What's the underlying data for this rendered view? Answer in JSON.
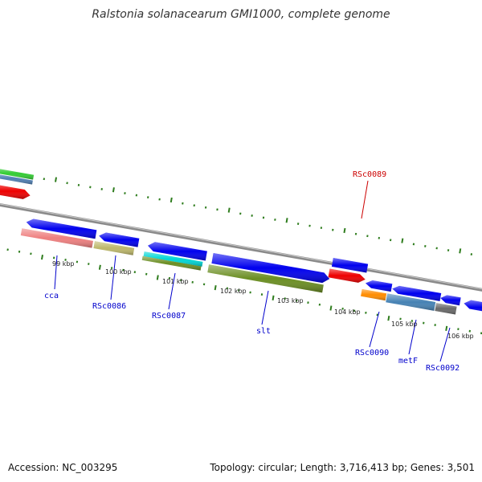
{
  "title": "Ralstonia solanacearum GMI1000, complete genome",
  "footer": {
    "accession": "Accession: NC_003295",
    "summary": "Topology: circular; Length: 3,716,413 bp; Genes: 3,501"
  },
  "colors": {
    "background": "#ffffff",
    "backbone": "#8a8a8a",
    "tick": "#2f7d1e",
    "label_default": "#0000cc",
    "label_highlight": "#cc0000"
  },
  "scale_labels": [
    "99 kbp",
    "100 kbp",
    "101 kbp",
    "102 kbp",
    "103 kbp",
    "104 kbp",
    "105 kbp",
    "106 kbp"
  ],
  "gene_labels": [
    {
      "text": "cca",
      "color": "#0000cc"
    },
    {
      "text": "RSc0086",
      "color": "#0000cc"
    },
    {
      "text": "RSc0087",
      "color": "#0000cc"
    },
    {
      "text": "slt",
      "color": "#0000cc"
    },
    {
      "text": "RSc0089",
      "color": "#cc0000"
    },
    {
      "text": "RSc0090",
      "color": "#0000cc"
    },
    {
      "text": "metF",
      "color": "#0000cc"
    },
    {
      "text": "RSc0092",
      "color": "#0000cc"
    }
  ],
  "features": [
    {
      "name": "green-bar",
      "strand": "+",
      "shape": "bar",
      "color": "#33cc33"
    },
    {
      "name": "steelblue-bar",
      "strand": "+",
      "shape": "bar",
      "color": "#4f7fb3"
    },
    {
      "name": "red-arrow-left",
      "strand": "+",
      "shape": "arrow-right",
      "color": "#ee0000"
    },
    {
      "name": "cca-arrow",
      "strand": "-",
      "shape": "arrow-left",
      "color": "#0000ee"
    },
    {
      "name": "cca-bar",
      "strand": "-",
      "shape": "bar",
      "color": "#ee7f7f"
    },
    {
      "name": "rsc0086-arrow",
      "strand": "-",
      "shape": "arrow-left",
      "color": "#0000ee"
    },
    {
      "name": "rsc0086-bar",
      "strand": "-",
      "shape": "bar",
      "color": "#bdb76b"
    },
    {
      "name": "rsc0087-arrow",
      "strand": "-",
      "shape": "arrow-left",
      "color": "#0000ee"
    },
    {
      "name": "rsc0087-cyan-bar",
      "strand": "-",
      "shape": "bar",
      "color": "#00d6d6"
    },
    {
      "name": "rsc0087-olive-bar",
      "strand": "-",
      "shape": "bar",
      "color": "#6b8e23"
    },
    {
      "name": "slt-arrow",
      "strand": "-",
      "shape": "arrow-right",
      "color": "#0000ee"
    },
    {
      "name": "slt-bar",
      "strand": "-",
      "shape": "bar",
      "color": "#6b8e23"
    },
    {
      "name": "rsc0089-arrow",
      "strand": "+",
      "shape": "bar",
      "color": "#0000ee"
    },
    {
      "name": "rsc0089-red-arrow",
      "strand": "+",
      "shape": "arrow-right",
      "color": "#ee0000"
    },
    {
      "name": "rsc0090-arrow",
      "strand": "-",
      "shape": "arrow-left",
      "color": "#0000ee"
    },
    {
      "name": "rsc0090-orange-bar",
      "strand": "-",
      "shape": "bar",
      "color": "#ff8c00"
    },
    {
      "name": "metf-arrow",
      "strand": "-",
      "shape": "arrow-left",
      "color": "#0000ee"
    },
    {
      "name": "metf-steelblue-bar",
      "strand": "-",
      "shape": "bar",
      "color": "#4682b4"
    },
    {
      "name": "rsc0092-arrow",
      "strand": "-",
      "shape": "arrow-left",
      "color": "#0000ee"
    },
    {
      "name": "rsc0092-gray-bar",
      "strand": "-",
      "shape": "bar",
      "color": "#696969"
    },
    {
      "name": "right-edge-arrow",
      "strand": "-",
      "shape": "arrow-left",
      "color": "#0000ee"
    }
  ]
}
